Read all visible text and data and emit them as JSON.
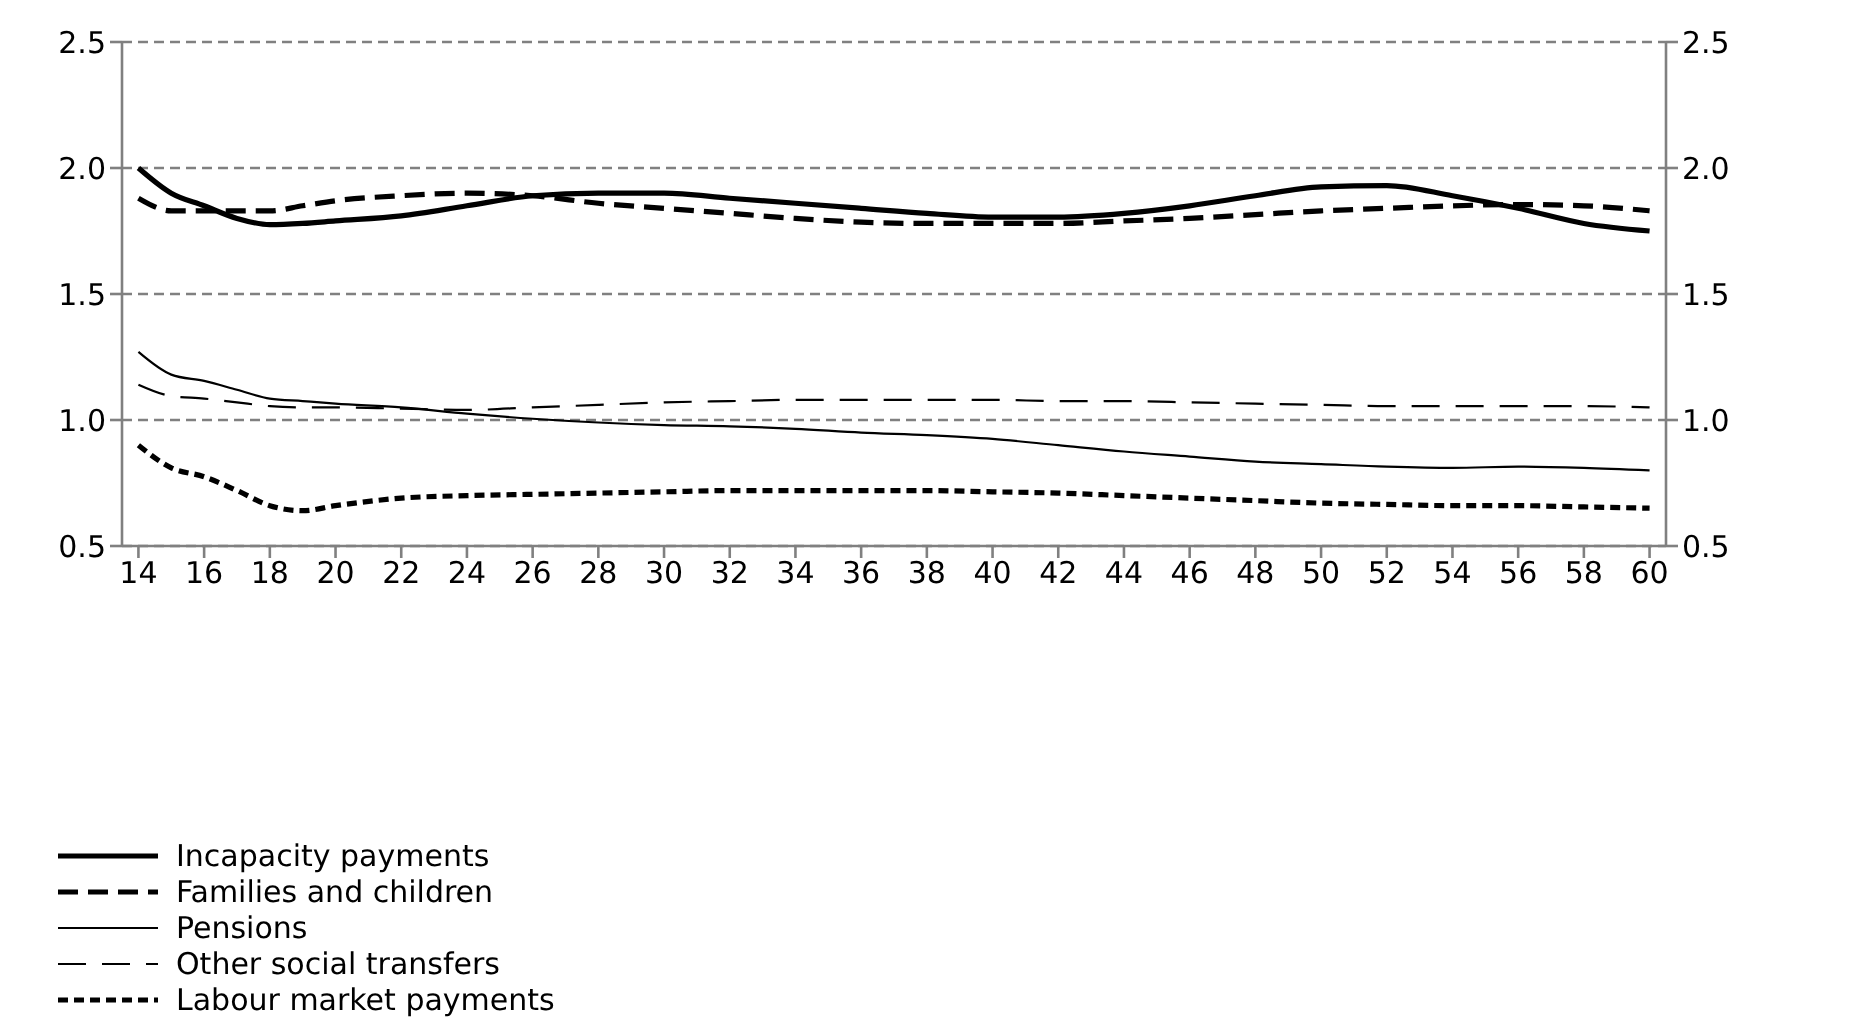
{
  "chart_data": {
    "type": "line",
    "x": [
      14,
      15,
      16,
      17,
      18,
      19,
      20,
      22,
      24,
      26,
      28,
      30,
      32,
      34,
      36,
      38,
      40,
      42,
      44,
      46,
      48,
      50,
      52,
      54,
      56,
      58,
      60
    ],
    "xlim": [
      13.5,
      60.5
    ],
    "xticks": [
      14,
      16,
      18,
      20,
      22,
      24,
      26,
      28,
      30,
      32,
      34,
      36,
      38,
      40,
      42,
      44,
      46,
      48,
      50,
      52,
      54,
      56,
      58,
      60
    ],
    "ylim": [
      0.5,
      2.5
    ],
    "yticks": [
      0.5,
      {
        "value": 1,
        "label": "1.0"
      },
      1.5,
      {
        "value": 2,
        "label": "2.0"
      },
      2.5
    ],
    "y2lim": [
      0.5,
      2.5
    ],
    "y2ticks": [
      0.5,
      {
        "value": 1,
        "label": "1.0"
      },
      1.5,
      {
        "value": 2,
        "label": "2.0"
      },
      2.5
    ],
    "grid": "y",
    "legend": "bottom",
    "marker": "none",
    "series": [
      {
        "name": "Incapacity payments",
        "color": "#000000",
        "line_style": "solid",
        "values": [
          2.0,
          1.9,
          1.85,
          1.8,
          1.775,
          1.78,
          1.79,
          1.81,
          1.85,
          1.89,
          1.9,
          1.9,
          1.88,
          1.86,
          1.84,
          1.82,
          1.805,
          1.805,
          1.82,
          1.85,
          1.89,
          1.925,
          1.93,
          1.89,
          1.84,
          1.78,
          1.75
        ]
      },
      {
        "name": "Families and children",
        "color": "#000000",
        "line_style": "dashed",
        "values": [
          1.88,
          1.83,
          1.83,
          1.83,
          1.83,
          1.85,
          1.87,
          1.89,
          1.9,
          1.89,
          1.86,
          1.84,
          1.82,
          1.8,
          1.785,
          1.78,
          1.78,
          1.78,
          1.79,
          1.8,
          1.815,
          1.83,
          1.84,
          1.85,
          1.855,
          1.85,
          1.83
        ]
      },
      {
        "name": "Pensions",
        "color": "#000000",
        "line_style": "solid",
        "values": [
          1.27,
          1.18,
          1.155,
          1.12,
          1.085,
          1.075,
          1.065,
          1.05,
          1.025,
          1.005,
          0.99,
          0.98,
          0.975,
          0.965,
          0.95,
          0.94,
          0.925,
          0.9,
          0.875,
          0.855,
          0.835,
          0.825,
          0.815,
          0.81,
          0.815,
          0.81,
          0.8
        ]
      },
      {
        "name": "Other social transfers",
        "color": "#000000",
        "line_style": "dashed",
        "values": [
          1.14,
          1.095,
          1.085,
          1.07,
          1.055,
          1.05,
          1.05,
          1.045,
          1.04,
          1.05,
          1.06,
          1.07,
          1.075,
          1.08,
          1.08,
          1.08,
          1.08,
          1.075,
          1.075,
          1.07,
          1.065,
          1.06,
          1.055,
          1.055,
          1.055,
          1.055,
          1.05
        ]
      },
      {
        "name": "Labour market payments",
        "color": "#000000",
        "line_style": "dotted",
        "values": [
          0.9,
          0.81,
          0.775,
          0.72,
          0.66,
          0.64,
          0.66,
          0.69,
          0.7,
          0.705,
          0.71,
          0.715,
          0.72,
          0.72,
          0.72,
          0.72,
          0.715,
          0.71,
          0.7,
          0.69,
          0.68,
          0.67,
          0.665,
          0.66,
          0.66,
          0.655,
          0.65
        ]
      }
    ]
  }
}
